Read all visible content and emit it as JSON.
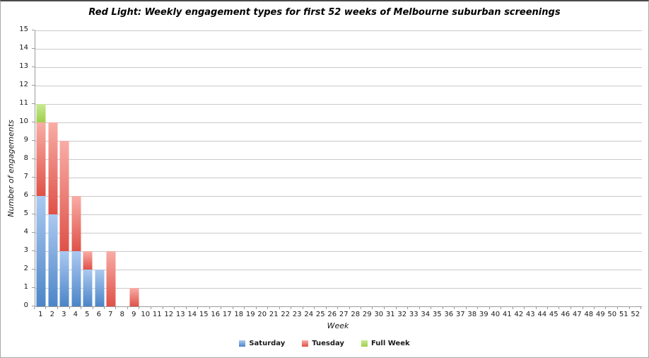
{
  "chart_data": {
    "type": "bar",
    "stacked": true,
    "title": "Red Light: Weekly engagement types for first 52 weeks of Melbourne suburban screenings",
    "xlabel": "Week",
    "ylabel": "Number of engagements",
    "ylim": [
      0,
      15
    ],
    "yticks": [
      0,
      1,
      2,
      3,
      4,
      5,
      6,
      7,
      8,
      9,
      10,
      11,
      12,
      13,
      14,
      15
    ],
    "grid": true,
    "legend_position": "bottom",
    "colors": {
      "gridline": "#c9c9c9",
      "axis": "#9b9b9b",
      "text": "#1a1a1a",
      "title": "#000000"
    },
    "categories": [
      "1",
      "2",
      "3",
      "4",
      "5",
      "6",
      "7",
      "8",
      "9",
      "10",
      "11",
      "12",
      "13",
      "14",
      "15",
      "16",
      "17",
      "18",
      "19",
      "20",
      "21",
      "22",
      "23",
      "24",
      "25",
      "26",
      "27",
      "28",
      "29",
      "30",
      "31",
      "32",
      "33",
      "34",
      "35",
      "36",
      "37",
      "38",
      "39",
      "40",
      "41",
      "42",
      "43",
      "44",
      "45",
      "46",
      "47",
      "48",
      "49",
      "50",
      "51",
      "52"
    ],
    "series": [
      {
        "name": "Saturday",
        "color_top": "#abc9f1",
        "color_bottom": "#4c85c8",
        "values": [
          6,
          5,
          3,
          3,
          2,
          2,
          0,
          0,
          0,
          0,
          0,
          0,
          0,
          0,
          0,
          0,
          0,
          0,
          0,
          0,
          0,
          0,
          0,
          0,
          0,
          0,
          0,
          0,
          0,
          0,
          0,
          0,
          0,
          0,
          0,
          0,
          0,
          0,
          0,
          0,
          0,
          0,
          0,
          0,
          0,
          0,
          0,
          0,
          0,
          0,
          0,
          0
        ]
      },
      {
        "name": "Tuesday",
        "color_top": "#f8ada6",
        "color_bottom": "#df5148",
        "values": [
          4,
          5,
          6,
          3,
          1,
          0,
          3,
          0,
          1,
          0,
          0,
          0,
          0,
          0,
          0,
          0,
          0,
          0,
          0,
          0,
          0,
          0,
          0,
          0,
          0,
          0,
          0,
          0,
          0,
          0,
          0,
          0,
          0,
          0,
          0,
          0,
          0,
          0,
          0,
          0,
          0,
          0,
          0,
          0,
          0,
          0,
          0,
          0,
          0,
          0,
          0,
          0
        ]
      },
      {
        "name": "Full Week",
        "color_top": "#c9e894",
        "color_bottom": "#9ed04b",
        "values": [
          1,
          0,
          0,
          0,
          0,
          0,
          0,
          0,
          0,
          0,
          0,
          0,
          0,
          0,
          0,
          0,
          0,
          0,
          0,
          0,
          0,
          0,
          0,
          0,
          0,
          0,
          0,
          0,
          0,
          0,
          0,
          0,
          0,
          0,
          0,
          0,
          0,
          0,
          0,
          0,
          0,
          0,
          0,
          0,
          0,
          0,
          0,
          0,
          0,
          0,
          0,
          0
        ]
      }
    ]
  }
}
